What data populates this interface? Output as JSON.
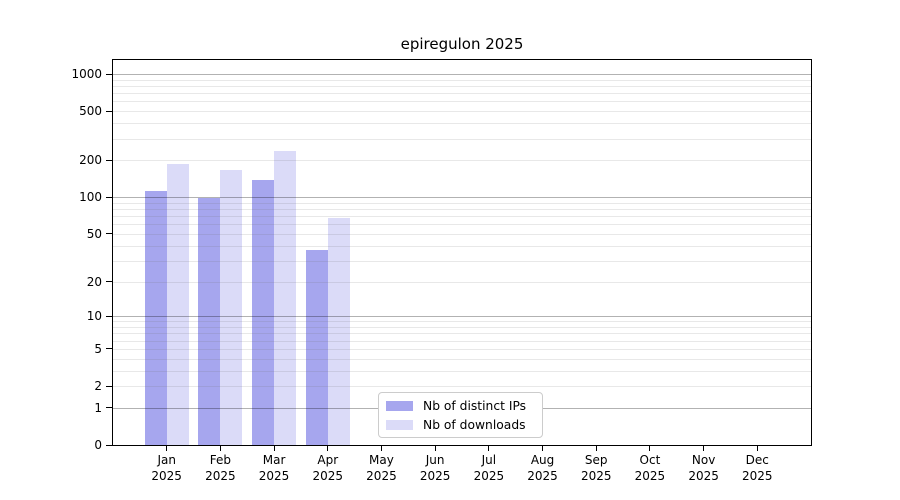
{
  "chart_data": {
    "type": "bar",
    "title": "epiregulon 2025",
    "categories": [
      "Jan",
      "Feb",
      "Mar",
      "Apr",
      "May",
      "Jun",
      "Jul",
      "Aug",
      "Sep",
      "Oct",
      "Nov",
      "Dec"
    ],
    "x_year": "2025",
    "series": [
      {
        "name": "Nb of distinct IPs",
        "color": "#a6a6ee",
        "values": [
          112,
          98,
          137,
          37,
          null,
          null,
          null,
          null,
          null,
          null,
          null,
          null
        ]
      },
      {
        "name": "Nb of downloads",
        "color": "#dbdbf8",
        "values": [
          188,
          168,
          236,
          67,
          null,
          null,
          null,
          null,
          null,
          null,
          null,
          null
        ]
      }
    ],
    "y_ticks": [
      0,
      1,
      2,
      5,
      10,
      20,
      50,
      100,
      200,
      500,
      1000
    ],
    "y_scale": "log10(value+1)",
    "ylim": [
      0,
      1300
    ],
    "grid": {
      "major_values": [
        1,
        10,
        100,
        1000
      ],
      "minor_values": [
        2,
        3,
        4,
        5,
        6,
        7,
        8,
        9,
        20,
        30,
        40,
        50,
        60,
        70,
        80,
        90,
        200,
        300,
        400,
        500,
        600,
        700,
        800,
        900
      ],
      "major_color": "#b3b3b3",
      "minor_color": "#e8e8e8"
    },
    "legend_position": "bottom-center",
    "axis_color": "#000000",
    "background": "#ffffff"
  }
}
